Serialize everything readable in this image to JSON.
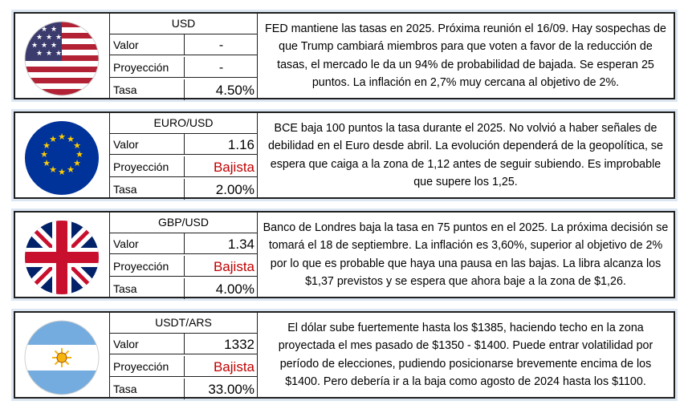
{
  "cards": [
    {
      "flag_icon": "usa-flag-icon",
      "header": "USD",
      "valor_label": "Valor",
      "valor": "-",
      "proyeccion_label": "Proyección",
      "proyeccion": "-",
      "tasa_label": "Tasa",
      "tasa": "4.50%",
      "description": "FED mantiene las tasas en 2025. Próxima reunión el 16/09. Hay sospechas de que Trump cambiará miembros para que voten a favor de la reducción de tasas, el mercado le da un 94% de probabilidad de bajada. Se esperan 25 puntos. La inflación en 2,7% muy cercana al objetivo de 2%."
    },
    {
      "flag_icon": "eu-flag-icon",
      "header": "EURO/USD",
      "valor_label": "Valor",
      "valor": "1.16",
      "proyeccion_label": "Proyección",
      "proyeccion": "Bajista",
      "tasa_label": "Tasa",
      "tasa": "2.00%",
      "description": "BCE baja 100 puntos la tasa durante el 2025. No volvió a haber señales de debilidad en el Euro desde abril. La evolución dependerá de la geopolítica, se espera que caiga a la zona de 1,12 antes de seguir subiendo. Es improbable que supere los 1,25."
    },
    {
      "flag_icon": "uk-flag-icon",
      "header": "GBP/USD",
      "valor_label": "Valor",
      "valor": "1.34",
      "proyeccion_label": "Proyección",
      "proyeccion": "Bajista",
      "tasa_label": "Tasa",
      "tasa": "4.00%",
      "description": "Banco de Londres baja la tasa en 75 puntos en el 2025. La próxima decisión se tomará el 18 de septiembre. La inflación es 3,60%, superior al objetivo de 2% por lo que es probable que haya una pausa en las bajas. La libra alcanza los $1,37 previstos y se espera que ahora baje a la zona de $1,26."
    },
    {
      "flag_icon": "argentina-flag-icon",
      "header": "USDT/ARS",
      "valor_label": "Valor",
      "valor": "1332",
      "proyeccion_label": "Proyección",
      "proyeccion": "Bajista",
      "tasa_label": "Tasa",
      "tasa": "33.00%",
      "description": "El dólar sube fuertemente hasta los $1385, haciendo techo en la zona proyectada el mes pasado de $1350 - $1400. Puede entrar volatilidad por período de elecciones, pudiendo posicionarse brevemente encima de los $1400. Pero debería ir a la baja como agosto de 2024 hasta los $1100."
    }
  ],
  "colors": {
    "card_frame": "#dce6f2",
    "border": "#1f1f1f",
    "bajista": "#c00000"
  }
}
